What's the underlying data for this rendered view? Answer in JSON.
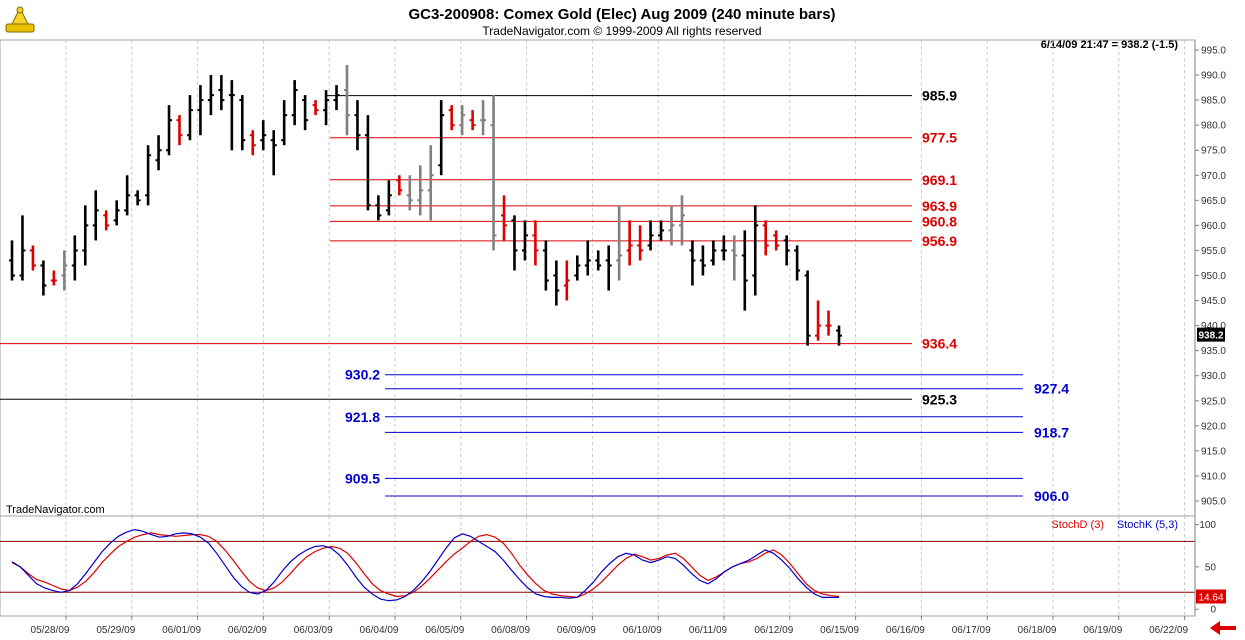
{
  "header": {
    "title": "GC3-200908:  Comex Gold (Elec) Aug 2009  (240 minute bars)",
    "subtitle": "TradeNavigator.com © 1999-2009 All rights reserved",
    "status": "6/14/09 21:47 = 938.2 (-1.5)",
    "watermark": "TradeNavigator.com"
  },
  "chart_data": [
    {
      "type": "bar",
      "subtype": "ohlc",
      "ylim": [
        902,
        997
      ],
      "y_ticks": [
        905.0,
        910.0,
        915.0,
        920.0,
        925.0,
        930.0,
        935.0,
        940.0,
        945.0,
        950.0,
        955.0,
        960.0,
        965.0,
        970.0,
        975.0,
        980.0,
        985.0,
        990.0,
        995.0
      ],
      "last_price_label": "938.2",
      "last_price": 938.2,
      "x_tick_labels": [
        "05/28/09",
        "05/29/09",
        "06/01/09",
        "06/02/09",
        "06/03/09",
        "06/04/09",
        "06/05/09",
        "06/08/09",
        "06/09/09",
        "06/10/09",
        "06/11/09",
        "06/12/09",
        "06/15/09",
        "06/16/09",
        "06/17/09",
        "06/18/09",
        "06/19/09",
        "06/22/09"
      ],
      "colors": {
        "up": "#000000",
        "down": "#dd0000",
        "neutral": "#808080"
      },
      "bars": [
        [
          953,
          957,
          949,
          950,
          "k"
        ],
        [
          950,
          962,
          949,
          955,
          "k"
        ],
        [
          955,
          956,
          951,
          952,
          "r"
        ],
        [
          952,
          953,
          946,
          948,
          "k"
        ],
        [
          949,
          951,
          948,
          949,
          "r"
        ],
        [
          950,
          955,
          947,
          952,
          "g"
        ],
        [
          952,
          958,
          949,
          955,
          "k"
        ],
        [
          955,
          964,
          952,
          960,
          "k"
        ],
        [
          960,
          967,
          957,
          963,
          "k"
        ],
        [
          962,
          963,
          959,
          960,
          "r"
        ],
        [
          961,
          965,
          960,
          963,
          "k"
        ],
        [
          963,
          970,
          962,
          966,
          "k"
        ],
        [
          966,
          967,
          964,
          965,
          "k"
        ],
        [
          966,
          976,
          964,
          974,
          "k"
        ],
        [
          973,
          978,
          971,
          975,
          "k"
        ],
        [
          975,
          984,
          974,
          981,
          "k"
        ],
        [
          981,
          982,
          976,
          978,
          "r"
        ],
        [
          978,
          986,
          977,
          983,
          "k"
        ],
        [
          983,
          988,
          978,
          985,
          "k"
        ],
        [
          985,
          990,
          982,
          986,
          "k"
        ],
        [
          987,
          990,
          983,
          985,
          "k"
        ],
        [
          986,
          989,
          975,
          986,
          "k"
        ],
        [
          985,
          986,
          975,
          977,
          "k"
        ],
        [
          978,
          979,
          974,
          976,
          "r"
        ],
        [
          977,
          981,
          975,
          978,
          "k"
        ],
        [
          977,
          979,
          970,
          976,
          "k"
        ],
        [
          977,
          985,
          976,
          982,
          "k"
        ],
        [
          982,
          989,
          980,
          987,
          "k"
        ],
        [
          985,
          986,
          979,
          981,
          "k"
        ],
        [
          984,
          985,
          982,
          983,
          "r"
        ],
        [
          983,
          987,
          980,
          985,
          "k"
        ],
        [
          985,
          988,
          983,
          986,
          "k"
        ],
        [
          987,
          992,
          978,
          982,
          "g"
        ],
        [
          982,
          985,
          975,
          978,
          "k"
        ],
        [
          978,
          982,
          963,
          964,
          "k"
        ],
        [
          964,
          966,
          961,
          962,
          "k"
        ],
        [
          963,
          969,
          962,
          966,
          "k"
        ],
        [
          969,
          970,
          966,
          967,
          "r"
        ],
        [
          966,
          970,
          963,
          965,
          "g"
        ],
        [
          965,
          972,
          962,
          967,
          "g"
        ],
        [
          967,
          976,
          961,
          970,
          "g"
        ],
        [
          972,
          985,
          970,
          982,
          "k"
        ],
        [
          983,
          984,
          979,
          980,
          "r"
        ],
        [
          980,
          984,
          978,
          982,
          "g"
        ],
        [
          981,
          983,
          979,
          980,
          "r"
        ],
        [
          981,
          985,
          978,
          981,
          "g"
        ],
        [
          980,
          986,
          955,
          958,
          "g"
        ],
        [
          962,
          966,
          957,
          960,
          "r"
        ],
        [
          961,
          962,
          951,
          955,
          "k"
        ],
        [
          955,
          961,
          953,
          958,
          "k"
        ],
        [
          958,
          961,
          952,
          955,
          "r"
        ],
        [
          955,
          957,
          947,
          949,
          "k"
        ],
        [
          950,
          953,
          944,
          947,
          "k"
        ],
        [
          948,
          953,
          945,
          949,
          "r"
        ],
        [
          950,
          954,
          949,
          952,
          "k"
        ],
        [
          952,
          957,
          950,
          953,
          "k"
        ],
        [
          953,
          955,
          951,
          952,
          "k"
        ],
        [
          953,
          956,
          947,
          952,
          "k"
        ],
        [
          953,
          964,
          949,
          954,
          "g"
        ],
        [
          955,
          961,
          952,
          956,
          "r"
        ],
        [
          956,
          960,
          953,
          955,
          "r"
        ],
        [
          956,
          961,
          955,
          958,
          "k"
        ],
        [
          958,
          961,
          957,
          959,
          "k"
        ],
        [
          959,
          964,
          956,
          960,
          "g"
        ],
        [
          960,
          966,
          956,
          962,
          "g"
        ],
        [
          955,
          957,
          948,
          953,
          "k"
        ],
        [
          953,
          956,
          950,
          952,
          "k"
        ],
        [
          953,
          957,
          952,
          955,
          "k"
        ],
        [
          955,
          958,
          953,
          955,
          "k"
        ],
        [
          955,
          958,
          949,
          954,
          "g"
        ],
        [
          954,
          959,
          943,
          949,
          "k"
        ],
        [
          950,
          964,
          946,
          960,
          "k"
        ],
        [
          960,
          961,
          954,
          956,
          "r"
        ],
        [
          958,
          959,
          955,
          956,
          "r"
        ],
        [
          957,
          958,
          952,
          955,
          "k"
        ],
        [
          955,
          956,
          949,
          951,
          "k"
        ],
        [
          950,
          951,
          936,
          938,
          "k"
        ],
        [
          938,
          945,
          937,
          940,
          "r"
        ],
        [
          940,
          943,
          938,
          940,
          "r"
        ],
        [
          939,
          940,
          936,
          938,
          "k"
        ]
      ],
      "levels": [
        {
          "value": 985.9,
          "label": "985.9",
          "color": "#000000",
          "side": "right"
        },
        {
          "value": 977.5,
          "label": "977.5",
          "color": "#dd0000",
          "side": "right"
        },
        {
          "value": 969.1,
          "label": "969.1",
          "color": "#dd0000",
          "side": "right"
        },
        {
          "value": 963.9,
          "label": "963.9",
          "color": "#dd0000",
          "side": "right"
        },
        {
          "value": 960.8,
          "label": "960.8",
          "color": "#dd0000",
          "side": "right"
        },
        {
          "value": 956.9,
          "label": "956.9",
          "color": "#dd0000",
          "side": "right"
        },
        {
          "value": 936.4,
          "label": "936.4",
          "color": "#dd0000",
          "side": "right"
        },
        {
          "value": 930.2,
          "label": "930.2",
          "color": "#0000cc",
          "side": "left"
        },
        {
          "value": 927.4,
          "label": "927.4",
          "color": "#0000cc",
          "side": "far"
        },
        {
          "value": 925.3,
          "label": "925.3",
          "color": "#000000",
          "side": "right"
        },
        {
          "value": 921.8,
          "label": "921.8",
          "color": "#0000cc",
          "side": "left"
        },
        {
          "value": 918.7,
          "label": "918.7",
          "color": "#0000cc",
          "side": "far"
        },
        {
          "value": 909.5,
          "label": "909.5",
          "color": "#0000cc",
          "side": "left"
        },
        {
          "value": 906.0,
          "label": "906.0",
          "color": "#0000cc",
          "side": "far"
        }
      ]
    },
    {
      "type": "line",
      "ylim": [
        -8,
        110
      ],
      "y_ticks": [
        0,
        50,
        100
      ],
      "reference_lines": [
        20,
        80
      ],
      "last_value_label": "14.64",
      "series": [
        {
          "name": "StochD (3)",
          "color": "#dd0000",
          "values": [
            55,
            50,
            42,
            35,
            32,
            28,
            24,
            22,
            26,
            33,
            43,
            55,
            65,
            74,
            80,
            85,
            88,
            90,
            88,
            87,
            86,
            87,
            88,
            88,
            86,
            80,
            70,
            58,
            45,
            33,
            25,
            22,
            25,
            32,
            42,
            53,
            62,
            68,
            72,
            74,
            72,
            66,
            55,
            42,
            30,
            22,
            18,
            15,
            16,
            20,
            27,
            36,
            46,
            56,
            65,
            72,
            80,
            86,
            88,
            85,
            78,
            66,
            52,
            40,
            30,
            22,
            18,
            16,
            15,
            14,
            18,
            24,
            32,
            42,
            52,
            60,
            65,
            62,
            58,
            60,
            64,
            66,
            60,
            50,
            40,
            34,
            38,
            44,
            50,
            54,
            56,
            60,
            66,
            70,
            64,
            54,
            42,
            30,
            22,
            18,
            16,
            15
          ]
        },
        {
          "name": "StochK (5,3)",
          "color": "#0000cc",
          "values": [
            56,
            50,
            40,
            30,
            25,
            22,
            20,
            22,
            30,
            42,
            55,
            68,
            78,
            86,
            91,
            94,
            92,
            88,
            85,
            86,
            89,
            90,
            89,
            85,
            78,
            66,
            52,
            38,
            27,
            20,
            18,
            22,
            32,
            45,
            56,
            64,
            70,
            74,
            75,
            72,
            64,
            52,
            38,
            26,
            18,
            12,
            10,
            11,
            15,
            22,
            32,
            44,
            58,
            72,
            84,
            89,
            86,
            80,
            74,
            68,
            58,
            46,
            35,
            25,
            18,
            15,
            14,
            14,
            13,
            14,
            22,
            32,
            44,
            54,
            62,
            66,
            64,
            58,
            55,
            58,
            62,
            60,
            52,
            42,
            34,
            30,
            36,
            44,
            50,
            54,
            58,
            64,
            70,
            66,
            58,
            48,
            36,
            26,
            18,
            14,
            14,
            14
          ]
        }
      ]
    }
  ]
}
